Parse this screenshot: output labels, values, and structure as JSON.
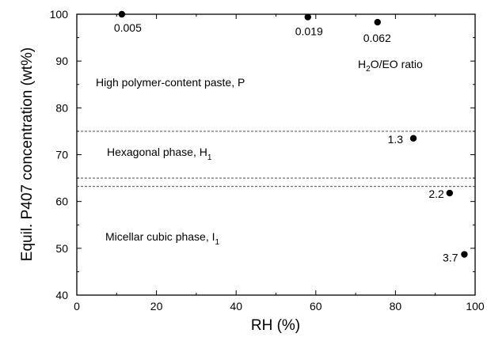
{
  "chart_data": {
    "type": "scatter",
    "xlabel": "RH (%)",
    "ylabel": "Equil. P407 concentration (wt%)",
    "xlim": [
      0,
      100
    ],
    "ylim": [
      40,
      100
    ],
    "xticks": [
      0,
      20,
      40,
      60,
      80,
      100
    ],
    "yticks": [
      40,
      50,
      60,
      70,
      80,
      90,
      100
    ],
    "grid": false,
    "series": [
      {
        "points": [
          {
            "x": 11.3,
            "y": 100.0,
            "label": "0.005"
          },
          {
            "x": 58.0,
            "y": 99.4,
            "label": "0.019"
          },
          {
            "x": 75.5,
            "y": 98.3,
            "label": "0.062"
          },
          {
            "x": 84.5,
            "y": 73.5,
            "label": "1.3"
          },
          {
            "x": 93.6,
            "y": 61.8,
            "label": "2.2"
          },
          {
            "x": 97.3,
            "y": 48.7,
            "label": "3.7"
          }
        ]
      }
    ],
    "reference_lines_y": [
      75.0,
      65.0,
      63.2
    ],
    "annotations": {
      "ratio_title_main": "H",
      "ratio_title_sub": "2",
      "ratio_title_rest": "O/EO ratio",
      "region_p": "High polymer-content paste, P",
      "region_h_main": "Hexagonal phase, H",
      "region_h_sub": "1",
      "region_i_main": "Micellar cubic phase, I",
      "region_i_sub": "1"
    }
  }
}
